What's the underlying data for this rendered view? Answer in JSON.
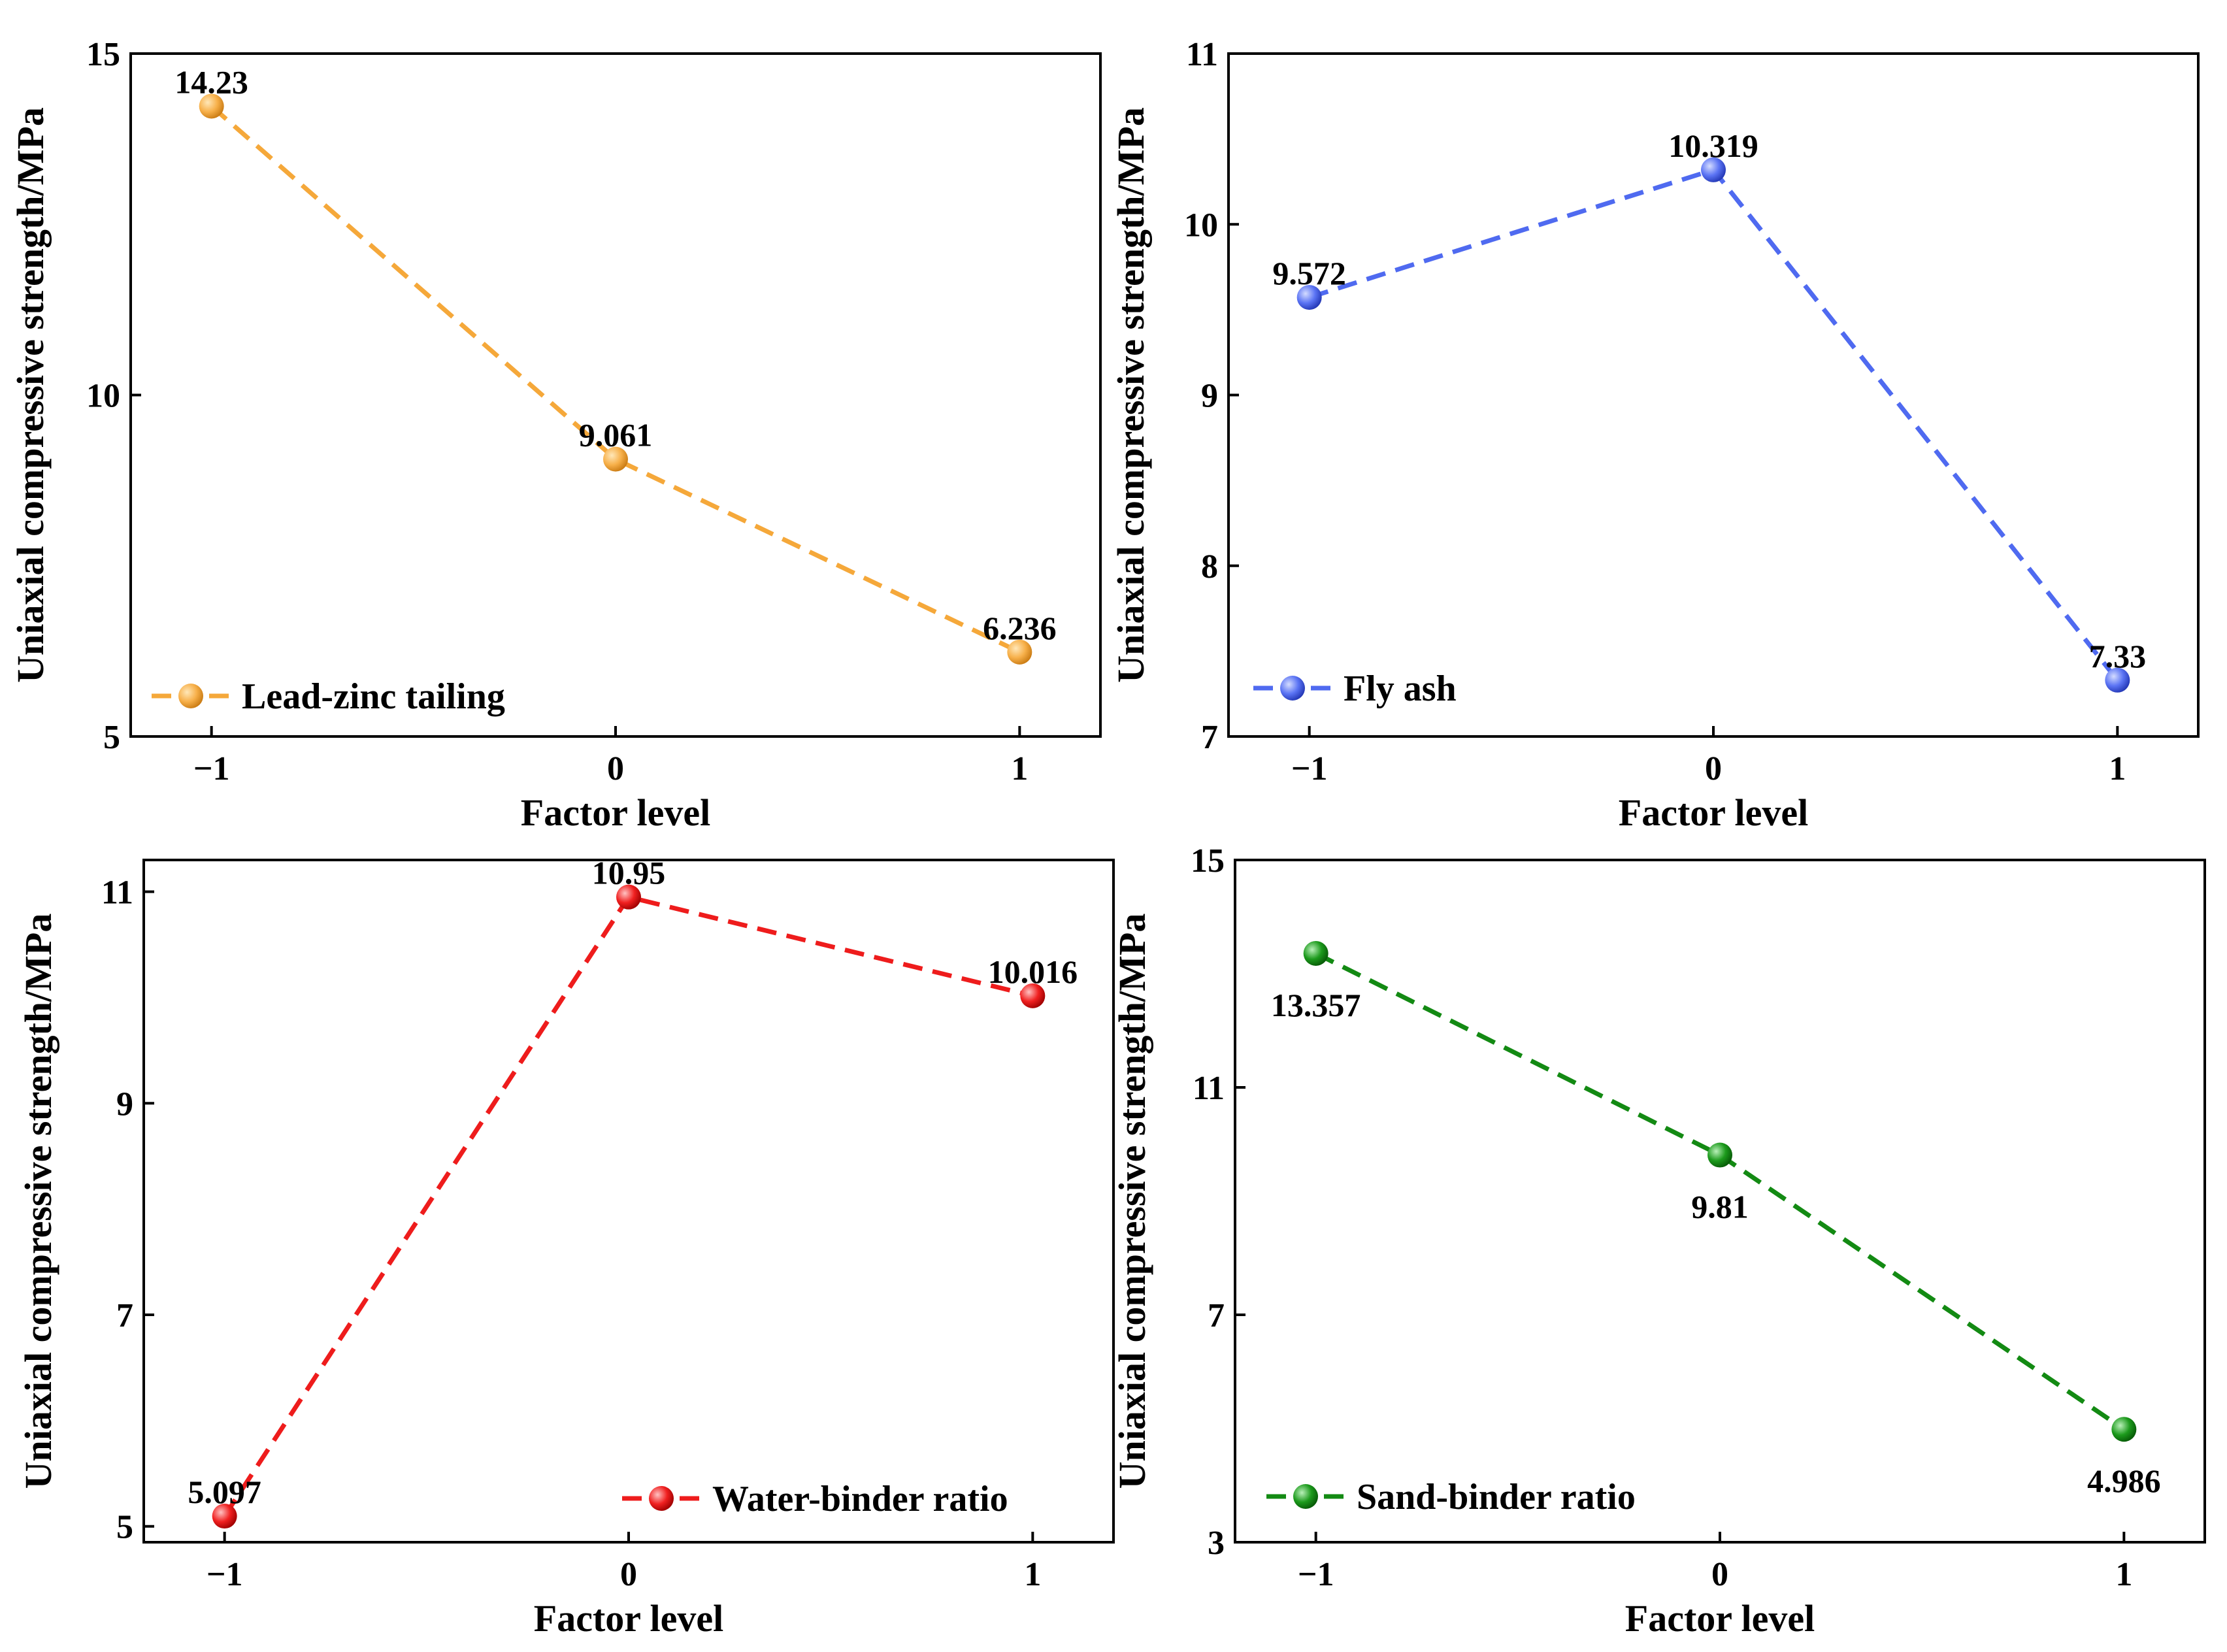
{
  "chart_data": [
    {
      "type": "line",
      "xlabel": "Factor level",
      "ylabel": "Uniaxial compressive strength/MPa",
      "categories": [
        "−1",
        "0",
        "1"
      ],
      "x": [
        -1,
        0,
        1
      ],
      "xlim": [
        -1.2,
        1.2
      ],
      "ylim": [
        5,
        15
      ],
      "yticks": [
        5,
        10,
        15
      ],
      "series": [
        {
          "name": "Lead-zinc tailing",
          "values": [
            14.23,
            9.061,
            6.236
          ],
          "color": "#F5A83A"
        }
      ],
      "data_labels": [
        "14.23",
        "9.061",
        "6.236"
      ],
      "legend_position": "bottom-left",
      "grid": false
    },
    {
      "type": "line",
      "xlabel": "Factor level",
      "ylabel": "Uniaxial compressive strength/MPa",
      "categories": [
        "−1",
        "0",
        "1"
      ],
      "x": [
        -1,
        0,
        1
      ],
      "xlim": [
        -1.2,
        1.2
      ],
      "ylim": [
        7,
        11
      ],
      "yticks": [
        7,
        8,
        9,
        10,
        11
      ],
      "series": [
        {
          "name": "Fly ash",
          "values": [
            9.572,
            10.319,
            7.33
          ],
          "color": "#4F6AF0"
        }
      ],
      "data_labels": [
        "9.572",
        "10.319",
        "7.33"
      ],
      "legend_position": "bottom-left",
      "grid": false
    },
    {
      "type": "line",
      "xlabel": "Factor level",
      "ylabel": "Uniaxial compressive strength/MPa",
      "categories": [
        "−1",
        "0",
        "1"
      ],
      "x": [
        -1,
        0,
        1
      ],
      "xlim": [
        -1.2,
        1.2
      ],
      "ylim": [
        4.85,
        11.3
      ],
      "yticks": [
        5,
        7,
        9,
        11
      ],
      "series": [
        {
          "name": "Water-binder ratio",
          "values": [
            5.097,
            10.95,
            10.016
          ],
          "color": "#EE1C1C"
        }
      ],
      "data_labels": [
        "5.097",
        "10.95",
        "10.016"
      ],
      "legend_position": "bottom-right",
      "grid": false
    },
    {
      "type": "line",
      "xlabel": "Factor level",
      "ylabel": "Uniaxial compressive strength/MPa",
      "categories": [
        "−1",
        "0",
        "1"
      ],
      "x": [
        -1,
        0,
        1
      ],
      "xlim": [
        -1.2,
        1.2
      ],
      "ylim": [
        3,
        15
      ],
      "yticks": [
        3,
        7,
        11,
        15
      ],
      "series": [
        {
          "name": "Sand-binder ratio",
          "values": [
            13.357,
            9.81,
            4.986
          ],
          "color": "#138A13"
        }
      ],
      "data_labels": [
        "13.357",
        "9.81",
        "4.986"
      ],
      "legend_position": "bottom-left",
      "grid": false
    }
  ]
}
